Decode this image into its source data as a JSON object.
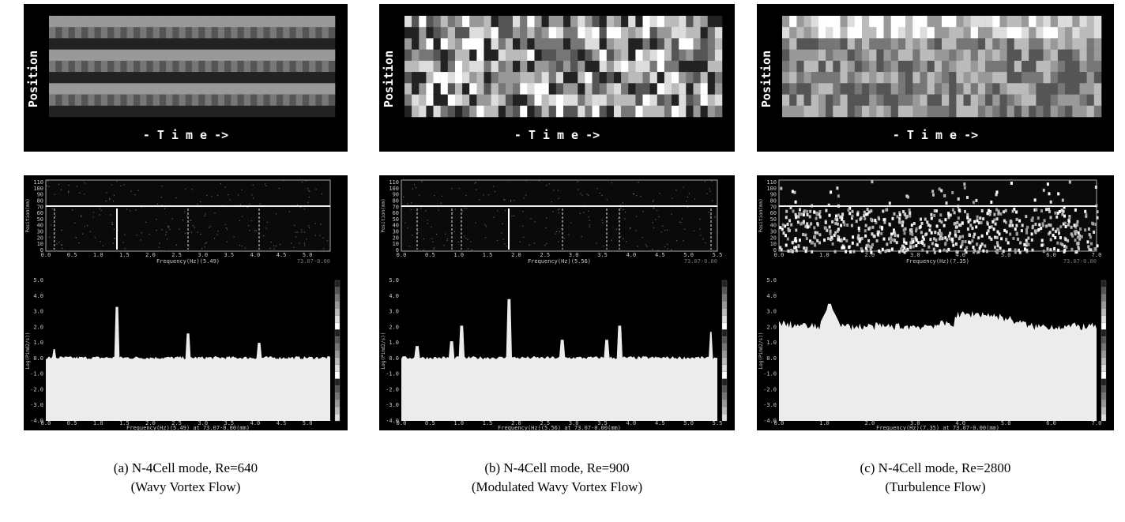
{
  "panels": [
    {
      "spacetime": {
        "ylabel": "Position",
        "xlabel": "- T i m e ->"
      },
      "spectrogram": {
        "yticks": [
          "110",
          "100",
          "90",
          "80",
          "70",
          "60",
          "50",
          "40",
          "30",
          "20",
          "10",
          "0"
        ],
        "ylabel": "Position(mm)",
        "xticks": [
          "0.0",
          "0.5",
          "1.0",
          "1.5",
          "2.0",
          "2.5",
          "3.0",
          "3.5",
          "4.0",
          "4.5",
          "5.0"
        ],
        "xlabel": "Frequency(Hz)(5.49)",
        "note": "73.07-0.00"
      },
      "spectrum": {
        "yticks": [
          "5.0",
          "4.0",
          "3.0",
          "2.0",
          "1.0",
          "0.0",
          "-1.0",
          "-2.0",
          "-3.0",
          "-4.0"
        ],
        "ylabel": "Log(Pimd2/s))",
        "xticks": [
          "0.0",
          "0.5",
          "1.0",
          "1.5",
          "2.0",
          "2.5",
          "3.0",
          "3.5",
          "4.0",
          "4.5",
          "5.0"
        ],
        "xlabel": "Frequency(Hz)(5.49) at 73.07-0.00(mm)"
      },
      "caption": [
        "(a) N-4Cell mode, Re=640",
        "(Wavy Vortex Flow)"
      ]
    },
    {
      "spacetime": {
        "ylabel": "Position",
        "xlabel": "- T i m e ->"
      },
      "spectrogram": {
        "yticks": [
          "110",
          "100",
          "90",
          "80",
          "70",
          "60",
          "50",
          "40",
          "30",
          "20",
          "10",
          "0"
        ],
        "ylabel": "Position(mm)",
        "xticks": [
          "0.0",
          "0.5",
          "1.0",
          "1.5",
          "2.0",
          "2.5",
          "3.0",
          "3.5",
          "4.0",
          "4.5",
          "5.0",
          "5.5"
        ],
        "xlabel": "Frequency(Hz)(5.56)",
        "note": "73.07-0.00"
      },
      "spectrum": {
        "yticks": [
          "5.0",
          "4.0",
          "3.0",
          "2.0",
          "1.0",
          "0.0",
          "-1.0",
          "-2.0",
          "-3.0",
          "-4.0"
        ],
        "ylabel": "Log(Pimd2/s))",
        "xticks": [
          "0.0",
          "0.5",
          "1.0",
          "1.5",
          "2.0",
          "2.5",
          "3.0",
          "3.5",
          "4.0",
          "4.5",
          "5.0",
          "5.5"
        ],
        "xlabel": "Frequency(Hz)(5.56) at 73.07-0.00(mm)"
      },
      "caption": [
        "(b) N-4Cell mode, Re=900",
        "(Modulated Wavy Vortex Flow)"
      ]
    },
    {
      "spacetime": {
        "ylabel": "Position",
        "xlabel": "- T i m e ->"
      },
      "spectrogram": {
        "yticks": [
          "110",
          "100",
          "90",
          "80",
          "70",
          "60",
          "50",
          "40",
          "30",
          "20",
          "10",
          "0"
        ],
        "ylabel": "Position(mm)",
        "xticks": [
          "0.0",
          "1.0",
          "2.0",
          "3.0",
          "4.0",
          "5.0",
          "6.0",
          "7.0"
        ],
        "xlabel": "Frequency(Hz)(7.35)",
        "note": "73.07-0.00"
      },
      "spectrum": {
        "yticks": [
          "5.0",
          "4.0",
          "3.0",
          "2.0",
          "1.0",
          "0.0",
          "-1.0",
          "-2.0",
          "-3.0",
          "-4.0"
        ],
        "ylabel": "Log(Pimd2/s))",
        "xticks": [
          "0.0",
          "1.0",
          "2.0",
          "3.0",
          "4.0",
          "5.0",
          "6.0",
          "7.0"
        ],
        "xlabel": "Frequency(Hz)(7.35) at 73.07-0.00(mm)"
      },
      "caption": [
        "(c) N-4Cell mode, Re=2800",
        "(Turbulence Flow)"
      ]
    }
  ]
}
